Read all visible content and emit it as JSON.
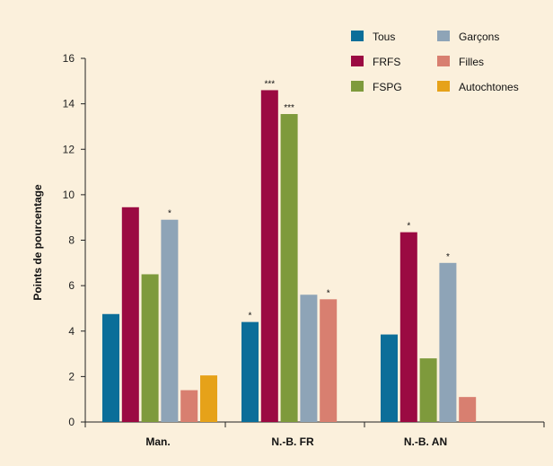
{
  "chart_data": {
    "type": "bar",
    "ylabel": "Points de pourcentage",
    "xlabel": "",
    "ylim": [
      0,
      16
    ],
    "yticks": [
      0,
      2,
      4,
      6,
      8,
      10,
      12,
      14,
      16
    ],
    "categories": [
      "Man.",
      "N.-B. FR",
      "N.-B. AN"
    ],
    "legend_position": "top-right",
    "series": [
      {
        "name": "Tous",
        "color": "#0b6e99",
        "values": [
          4.75,
          4.4,
          3.85
        ],
        "marks": [
          "",
          "*",
          ""
        ]
      },
      {
        "name": "FRFS",
        "color": "#9b0a42",
        "values": [
          9.45,
          14.6,
          8.35
        ],
        "marks": [
          "",
          "***",
          "*"
        ]
      },
      {
        "name": "FSPG",
        "color": "#7e9a3c",
        "values": [
          6.5,
          13.55,
          2.8
        ],
        "marks": [
          "",
          "***",
          ""
        ]
      },
      {
        "name": "Garçons",
        "color": "#8ea4b7",
        "values": [
          8.9,
          5.6,
          7.0
        ],
        "marks": [
          "*",
          "",
          "*"
        ]
      },
      {
        "name": "Filles",
        "color": "#d87f70",
        "values": [
          1.4,
          5.4,
          1.1
        ],
        "marks": [
          "",
          "*",
          ""
        ]
      },
      {
        "name": "Autochtones",
        "color": "#e6a219",
        "values": [
          2.05,
          null,
          null
        ],
        "marks": [
          "",
          "",
          ""
        ]
      }
    ]
  }
}
